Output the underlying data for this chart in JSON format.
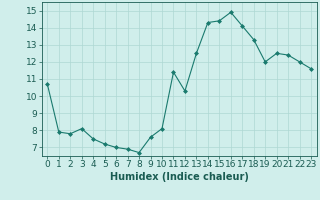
{
  "x": [
    0,
    1,
    2,
    3,
    4,
    5,
    6,
    7,
    8,
    9,
    10,
    11,
    12,
    13,
    14,
    15,
    16,
    17,
    18,
    19,
    20,
    21,
    22,
    23
  ],
  "y": [
    10.7,
    7.9,
    7.8,
    8.1,
    7.5,
    7.2,
    7.0,
    6.9,
    6.7,
    7.6,
    8.1,
    11.4,
    10.3,
    12.5,
    14.3,
    14.4,
    14.9,
    14.1,
    13.3,
    12.0,
    12.5,
    12.4,
    12.0,
    11.6
  ],
  "line_color": "#1a7a6e",
  "marker": "D",
  "marker_size": 2,
  "bg_color": "#d0eeeb",
  "grid_color": "#aed8d3",
  "xlabel": "Humidex (Indice chaleur)",
  "xlim": [
    -0.5,
    23.5
  ],
  "ylim": [
    6.5,
    15.5
  ],
  "yticks": [
    7,
    8,
    9,
    10,
    11,
    12,
    13,
    14,
    15
  ],
  "xticks": [
    0,
    1,
    2,
    3,
    4,
    5,
    6,
    7,
    8,
    9,
    10,
    11,
    12,
    13,
    14,
    15,
    16,
    17,
    18,
    19,
    20,
    21,
    22,
    23
  ],
  "tick_color": "#1a5c52",
  "label_fontsize": 7,
  "tick_fontsize": 6.5
}
